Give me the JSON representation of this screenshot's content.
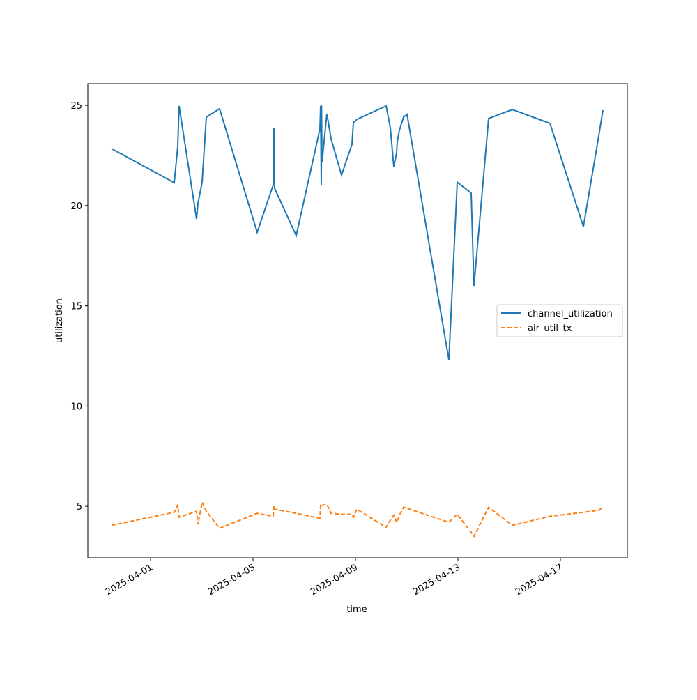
{
  "chart_data": {
    "type": "line",
    "x_label": "time",
    "y_label": "utilization",
    "x": [
      "2025-03-30T11:26",
      "2025-04-01T22:12",
      "2025-04-02T01:28",
      "2025-04-02T02:47",
      "2025-04-02T19:06",
      "2025-04-02T20:24",
      "2025-04-03T00:20",
      "2025-04-03T04:15",
      "2025-04-03T16:39",
      "2025-04-05T03:55",
      "2025-04-05T18:56",
      "2025-04-05T19:35",
      "2025-04-05T20:15",
      "2025-04-06T16:29",
      "2025-04-07T14:41",
      "2025-04-07T15:21",
      "2025-04-07T16:00",
      "2025-04-07T16:12",
      "2025-04-07T16:39",
      "2025-04-07T21:13",
      "2025-04-08T01:09",
      "2025-04-08T10:56",
      "2025-04-08T20:44",
      "2025-04-08T22:03",
      "2025-04-09T01:18",
      "2025-04-10T04:44",
      "2025-04-10T08:39",
      "2025-04-10T11:55",
      "2025-04-10T14:32",
      "2025-04-10T15:11",
      "2025-04-10T17:09",
      "2025-04-10T21:04",
      "2025-04-11T00:20",
      "2025-04-12T15:31",
      "2025-04-12T23:21",
      "2025-04-13T12:24",
      "2025-04-13T15:01",
      "2025-04-14T04:44",
      "2025-04-15T02:56",
      "2025-04-16T14:12",
      "2025-04-17T21:33",
      "2025-04-18T11:55",
      "2025-04-18T15:50"
    ],
    "series": [
      {
        "name": "channel_utilization",
        "color": "#1f77b4",
        "dash": "solid",
        "values": [
          22.84,
          21.14,
          22.95,
          24.97,
          19.33,
          20.1,
          21.17,
          24.41,
          24.83,
          18.67,
          21.03,
          23.85,
          20.86,
          18.5,
          23.82,
          24.97,
          21.03,
          25.03,
          22.15,
          24.58,
          23.33,
          21.52,
          23.05,
          24.13,
          24.3,
          24.97,
          23.89,
          21.94,
          22.63,
          23.19,
          23.75,
          24.41,
          24.55,
          12.3,
          21.17,
          20.62,
          15.99,
          24.34,
          24.79,
          24.1,
          18.95,
          23.47,
          24.76
        ]
      },
      {
        "name": "air_util_tx",
        "color": "#ff7f0e",
        "dash": "dashed",
        "values": [
          4.05,
          4.7,
          5.05,
          4.45,
          4.75,
          4.1,
          5.2,
          4.75,
          3.9,
          4.65,
          4.5,
          5.0,
          4.85,
          4.65,
          4.4,
          5.05,
          5.05,
          5.1,
          5.05,
          5.1,
          4.65,
          4.6,
          4.6,
          4.45,
          4.85,
          3.95,
          4.3,
          4.55,
          4.2,
          4.25,
          4.55,
          4.95,
          4.9,
          4.2,
          4.6,
          3.7,
          3.5,
          4.95,
          4.05,
          4.5,
          4.7,
          4.8,
          4.95
        ]
      }
    ],
    "xlim": [
      "2025-03-29T13:13",
      "2025-04-19T14:41"
    ],
    "xticks": [
      "2025-04-01",
      "2025-04-05",
      "2025-04-09",
      "2025-04-13",
      "2025-04-17"
    ],
    "ylim": [
      2.43,
      26.08
    ],
    "yticks": [
      5,
      10,
      15,
      20,
      25
    ],
    "grid": false,
    "legend": "center right"
  }
}
